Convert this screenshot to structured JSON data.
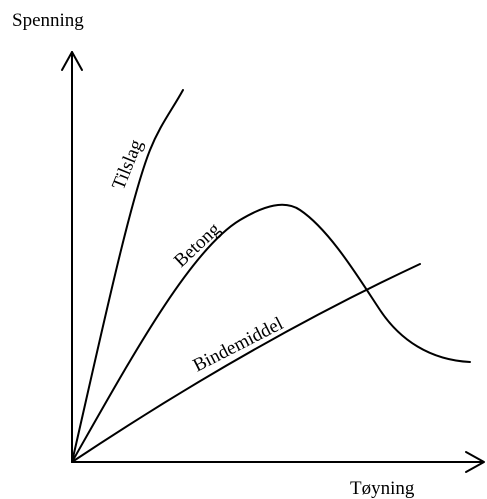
{
  "axes": {
    "y_label": "Spenning",
    "x_label": "Tøyning"
  },
  "curves": [
    {
      "id": "tilslag",
      "label": "Tilslag"
    },
    {
      "id": "betong",
      "label": "Betong"
    },
    {
      "id": "bindemiddel",
      "label": "Bindemiddel"
    }
  ],
  "colors": {
    "line": "#000000",
    "background": "#ffffff"
  }
}
